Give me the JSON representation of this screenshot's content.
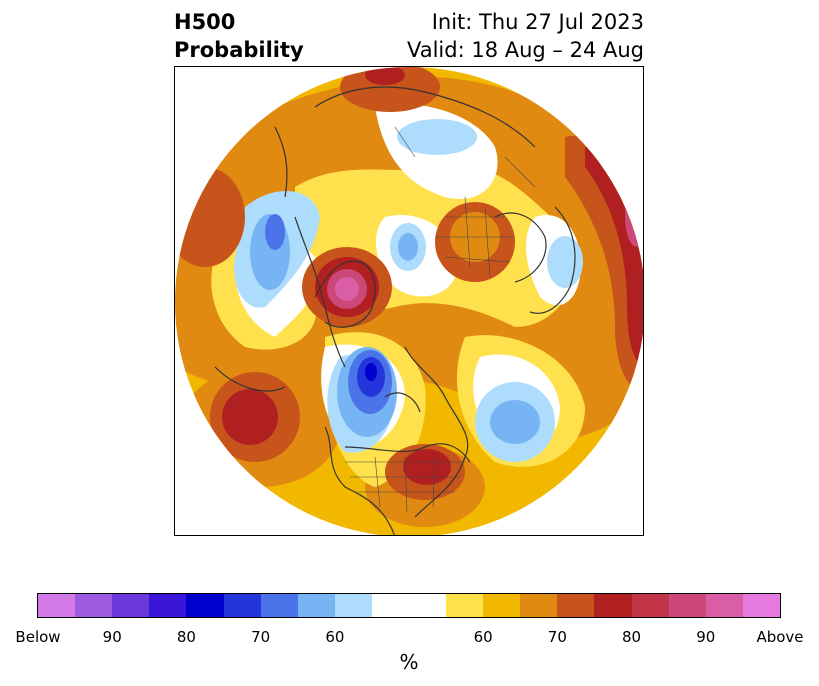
{
  "header": {
    "title_line1": "H500",
    "title_line2": "Probability",
    "init": "Init: Thu 27 Jul 2023",
    "valid": "Valid: 18 Aug – 24 Aug"
  },
  "colorbar": {
    "segments": [
      {
        "color": "#d47ae8"
      },
      {
        "color": "#9d5ce0"
      },
      {
        "color": "#6b38dc"
      },
      {
        "color": "#3a17d8"
      },
      {
        "color": "#0000cc"
      },
      {
        "color": "#2436db"
      },
      {
        "color": "#4a74e8"
      },
      {
        "color": "#76b4f4"
      },
      {
        "color": "#aedcfd"
      },
      {
        "color": "#ffffff",
        "wide": true
      },
      {
        "color": "#ffe14d"
      },
      {
        "color": "#f2b800"
      },
      {
        "color": "#e08a12"
      },
      {
        "color": "#c7541b"
      },
      {
        "color": "#b02020"
      },
      {
        "color": "#c23549"
      },
      {
        "color": "#cc4878"
      },
      {
        "color": "#d95ea6"
      },
      {
        "color": "#e679de"
      }
    ],
    "labels": [
      "Below",
      "90",
      "80",
      "70",
      "60",
      "60",
      "70",
      "80",
      "90",
      "Above"
    ],
    "unit": "%"
  },
  "colors": {
    "below_dark": "#0000cc",
    "neutral": "#ffffff",
    "above_dark": "#b02020",
    "coastline": "#333333"
  }
}
